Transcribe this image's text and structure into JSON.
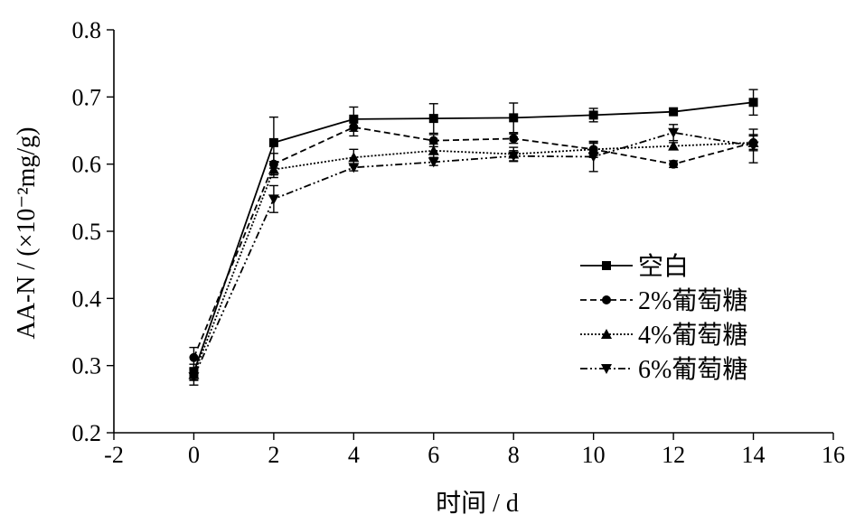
{
  "chart_data": {
    "type": "line",
    "title": "",
    "xlabel": "时间 / d",
    "ylabel": "AA-N / (×10⁻²mg/g)",
    "xlim": [
      -2,
      16
    ],
    "ylim": [
      0.2,
      0.8
    ],
    "xticks": [
      -2,
      0,
      2,
      4,
      6,
      8,
      10,
      12,
      14,
      16
    ],
    "yticks": [
      0.2,
      0.3,
      0.4,
      0.5,
      0.6,
      0.7,
      0.8
    ],
    "x": [
      0,
      2,
      4,
      6,
      8,
      10,
      12,
      14
    ],
    "grid": false,
    "legend_position": "right-middle",
    "series": [
      {
        "name": "空白",
        "marker": "square",
        "dash": "solid",
        "values": [
          0.29,
          0.632,
          0.667,
          0.668,
          0.669,
          0.673,
          0.678,
          0.692
        ],
        "errors": [
          0.012,
          0.038,
          0.018,
          0.022,
          0.022,
          0.01,
          0.0,
          0.019
        ]
      },
      {
        "name": "2%葡萄糖",
        "marker": "circle",
        "dash": "dashed",
        "values": [
          0.312,
          0.6,
          0.655,
          0.635,
          0.638,
          0.622,
          0.6,
          0.632
        ],
        "errors": [
          0.015,
          0.016,
          0.013,
          0.009,
          0.007,
          0.009,
          0.005,
          0.012
        ]
      },
      {
        "name": "4%葡萄糖",
        "marker": "triangle-up",
        "dash": "dotted",
        "values": [
          0.287,
          0.592,
          0.61,
          0.62,
          0.615,
          0.622,
          0.627,
          0.632
        ],
        "errors": [
          0.008,
          0.012,
          0.012,
          0.01,
          0.01,
          0.012,
          0.005,
          0.01
        ]
      },
      {
        "name": "6%葡萄糖",
        "marker": "triangle-down",
        "dash": "dash-dot-dot",
        "values": [
          0.283,
          0.548,
          0.595,
          0.603,
          0.612,
          0.611,
          0.647,
          0.627
        ],
        "errors": [
          0.012,
          0.02,
          0.005,
          0.005,
          0.008,
          0.022,
          0.012,
          0.025
        ]
      }
    ]
  }
}
